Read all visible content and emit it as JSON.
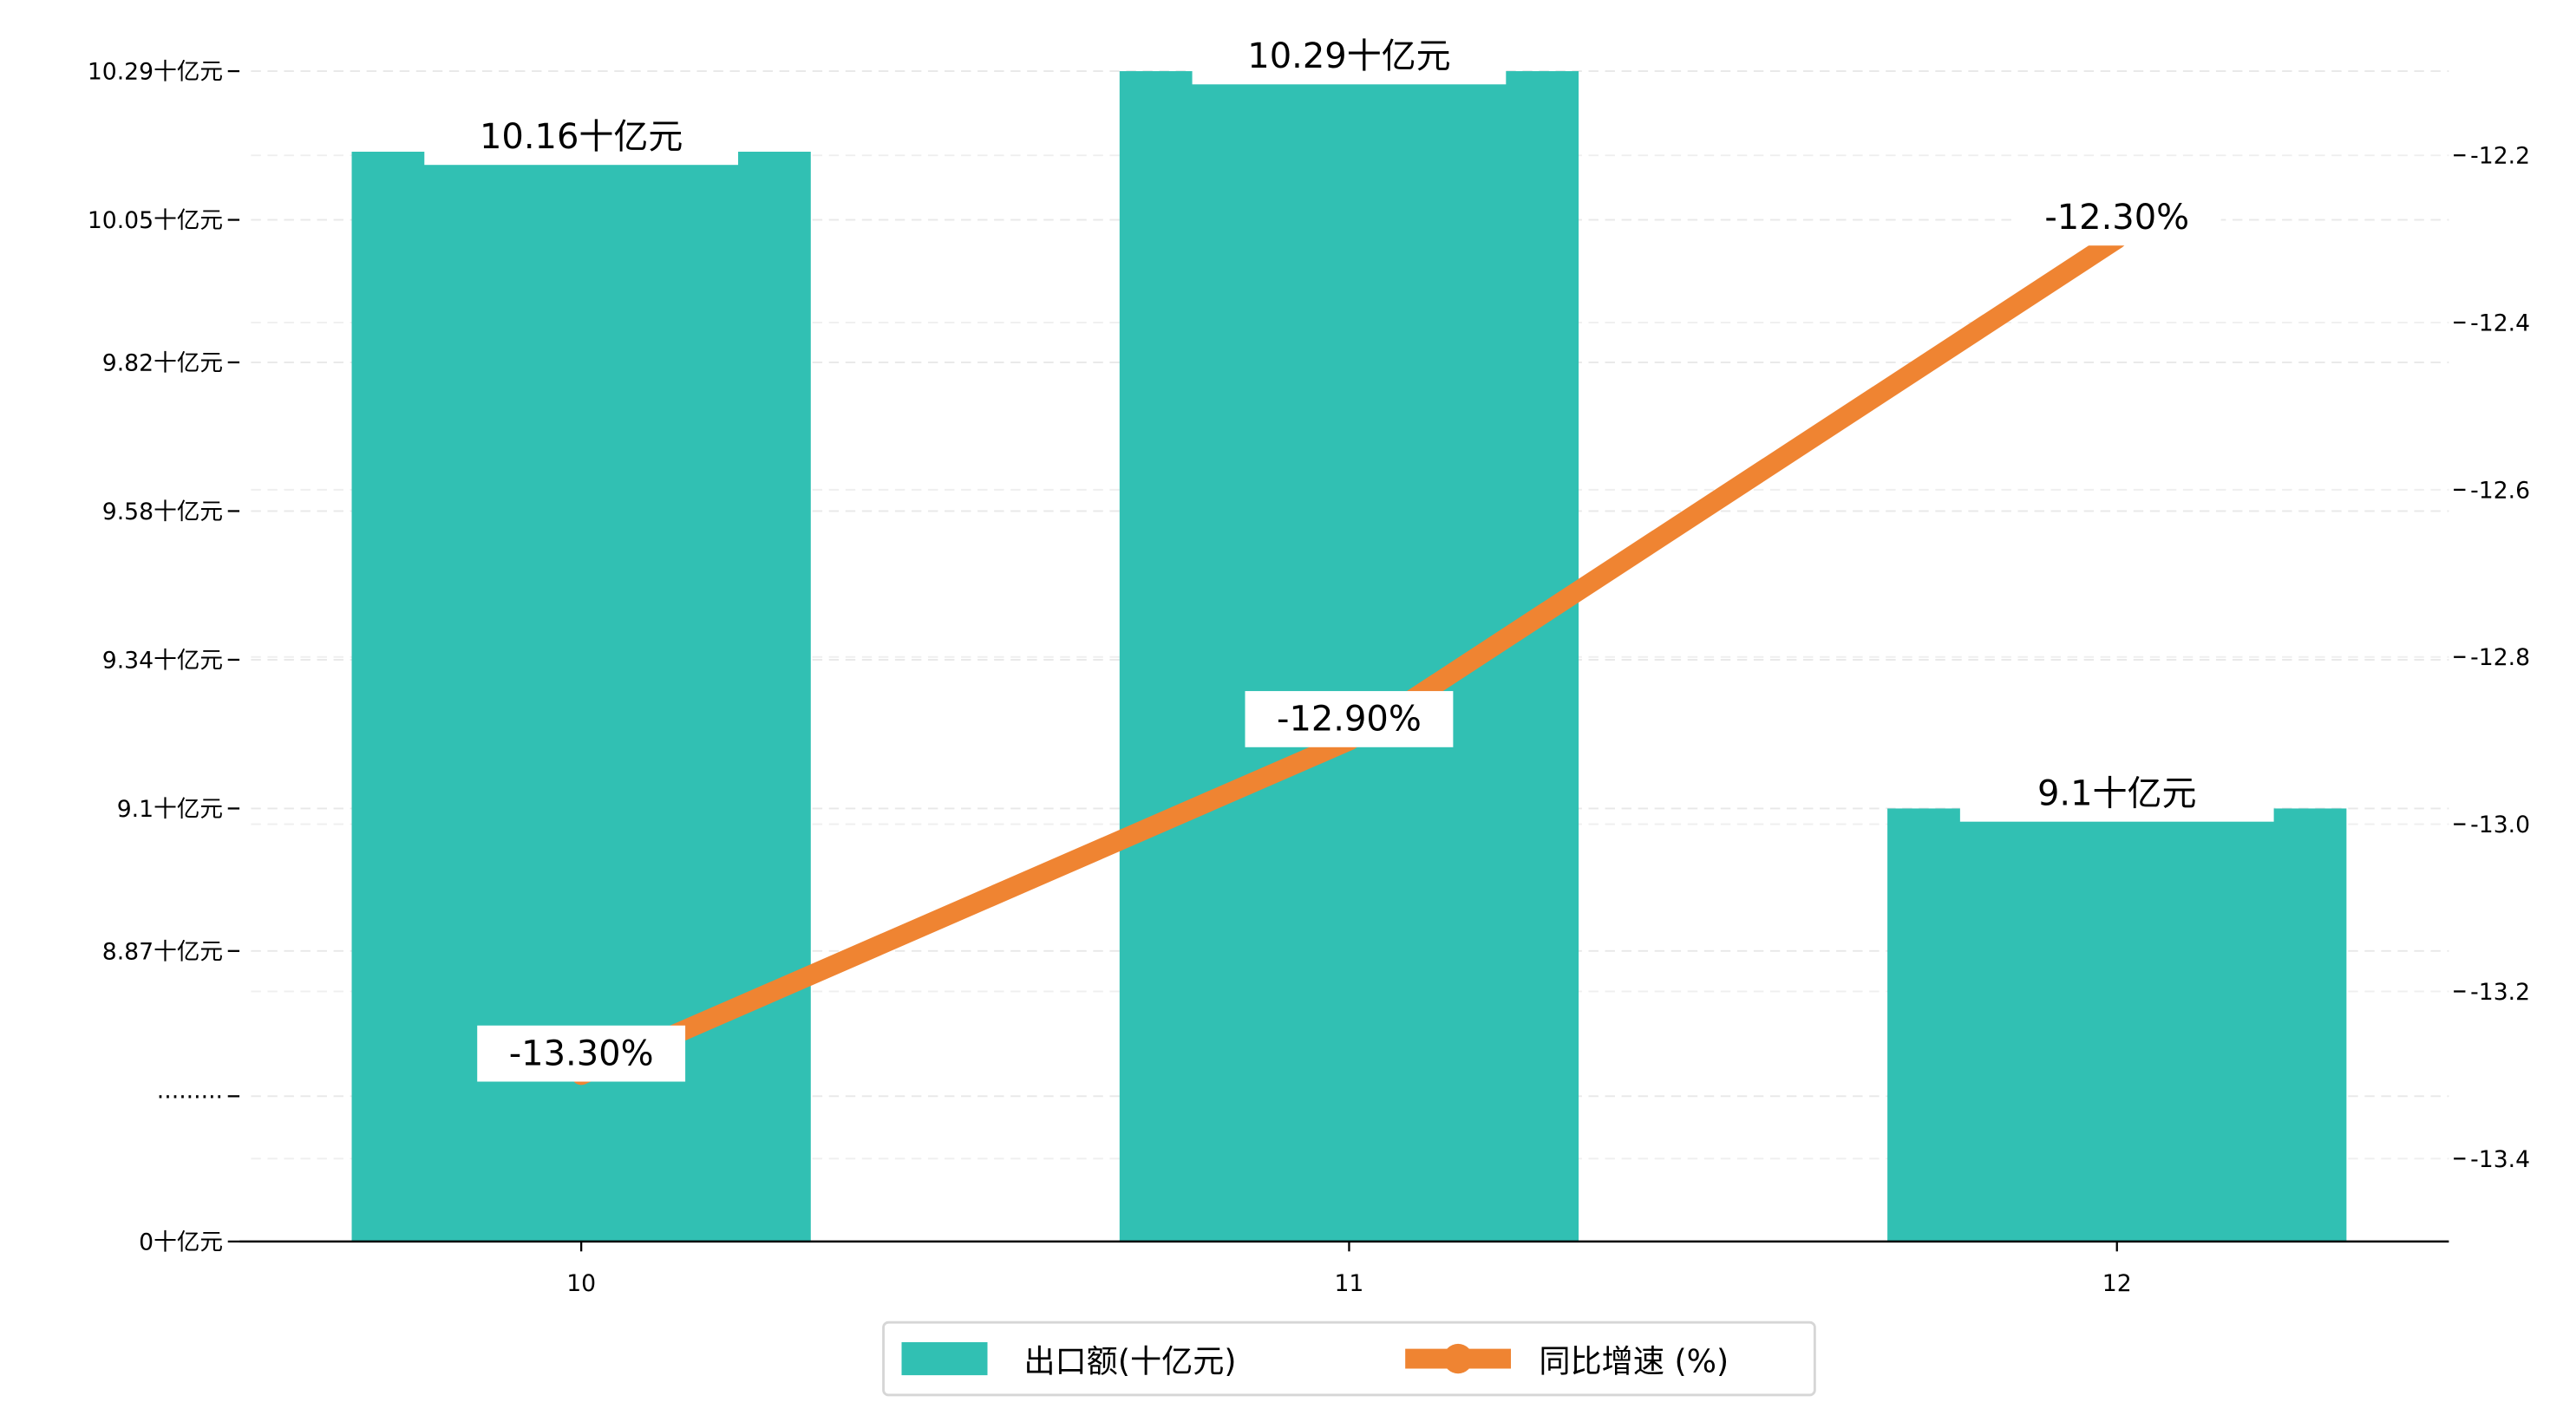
{
  "chart_data": {
    "type": "bar+line",
    "categories": [
      "10",
      "11",
      "12"
    ],
    "series": [
      {
        "name": "出口额(十亿元)",
        "type": "bar",
        "axis": "left",
        "values": [
          10.16,
          10.29,
          9.1
        ],
        "labels": [
          "10.16十亿元",
          "10.29十亿元",
          "9.1十亿元"
        ],
        "color": "#31c0b3"
      },
      {
        "name": "同比增速 (%)",
        "type": "line",
        "axis": "right",
        "values": [
          -13.3,
          -12.9,
          -12.3
        ],
        "labels": [
          "-13.30%",
          "-12.90%",
          "-12.30%"
        ],
        "color": "#ef8432"
      }
    ],
    "left_axis": {
      "ticks": [
        {
          "value": 0,
          "label": "0十亿元"
        },
        {
          "value": null,
          "label": "·········"
        },
        {
          "value": 8.87,
          "label": "8.87十亿元"
        },
        {
          "value": 9.1,
          "label": "9.1十亿元"
        },
        {
          "value": 9.34,
          "label": "9.34十亿元"
        },
        {
          "value": 9.58,
          "label": "9.58十亿元"
        },
        {
          "value": 9.82,
          "label": "9.82十亿元"
        },
        {
          "value": 10.05,
          "label": "10.05十亿元"
        },
        {
          "value": 10.29,
          "label": "10.29十亿元"
        }
      ],
      "broken": true
    },
    "right_axis": {
      "ticks": [
        -13.4,
        -13.2,
        -13.0,
        -12.8,
        -12.6,
        -12.4,
        -12.2
      ],
      "tick_labels": [
        "-13.4",
        "-13.2",
        "-13.0",
        "-12.8",
        "-12.6",
        "-12.4",
        "-12.2"
      ],
      "ylim": [
        -13.5,
        -12.1
      ]
    },
    "grid": true,
    "legend": {
      "placement": "bottom-center",
      "entries": [
        "出口额(十亿元)",
        "同比增速 (%)"
      ]
    },
    "title": "",
    "xlabel": "",
    "ylabel": ""
  }
}
